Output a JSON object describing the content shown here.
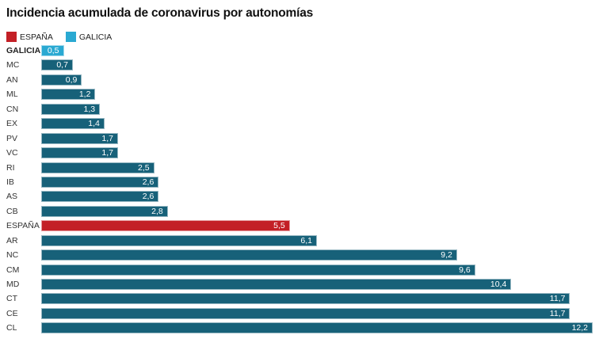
{
  "title": "Incidencia acumulada de coronavirus por autonomías",
  "legend": {
    "espana": {
      "label": "ESPAÑA",
      "color": "#c32026"
    },
    "galicia": {
      "label": "GALICIA",
      "color": "#2aa9d2"
    }
  },
  "colors": {
    "bar_default": "#176179",
    "bar_espana": "#c32026",
    "bar_galicia": "#2aa9d2",
    "value_text": "#ffffff",
    "label_text": "#333333",
    "background": "#ffffff"
  },
  "chart_data": {
    "type": "bar",
    "orientation": "horizontal",
    "title": "Incidencia acumulada de coronavirus por autonomías",
    "xlim": [
      0,
      12.2
    ],
    "grid": false,
    "legend_position": "top-left",
    "legend_entries": [
      "ESPAÑA",
      "GALICIA"
    ],
    "categories": [
      "GALICIA",
      "MC",
      "AN",
      "ML",
      "CN",
      "EX",
      "PV",
      "VC",
      "RI",
      "IB",
      "AS",
      "CB",
      "ESPAÑA",
      "AR",
      "NC",
      "CM",
      "MD",
      "CT",
      "CE",
      "CL"
    ],
    "values": [
      0.5,
      0.7,
      0.9,
      1.2,
      1.3,
      1.4,
      1.7,
      1.7,
      2.5,
      2.6,
      2.6,
      2.8,
      5.5,
      6.1,
      9.2,
      9.6,
      10.4,
      11.7,
      11.7,
      12.2
    ],
    "value_labels": [
      "0,5",
      "0,7",
      "0,9",
      "1,2",
      "1,3",
      "1,4",
      "1,7",
      "1,7",
      "2,5",
      "2,6",
      "2,6",
      "2,8",
      "5,5",
      "6,1",
      "9,2",
      "9,6",
      "10,4",
      "11,7",
      "11,7",
      "12,2"
    ],
    "bar_color_keys": [
      "galicia",
      "default",
      "default",
      "default",
      "default",
      "default",
      "default",
      "default",
      "default",
      "default",
      "default",
      "default",
      "espana",
      "default",
      "default",
      "default",
      "default",
      "default",
      "default",
      "default"
    ],
    "bold_categories": [
      "GALICIA"
    ]
  }
}
